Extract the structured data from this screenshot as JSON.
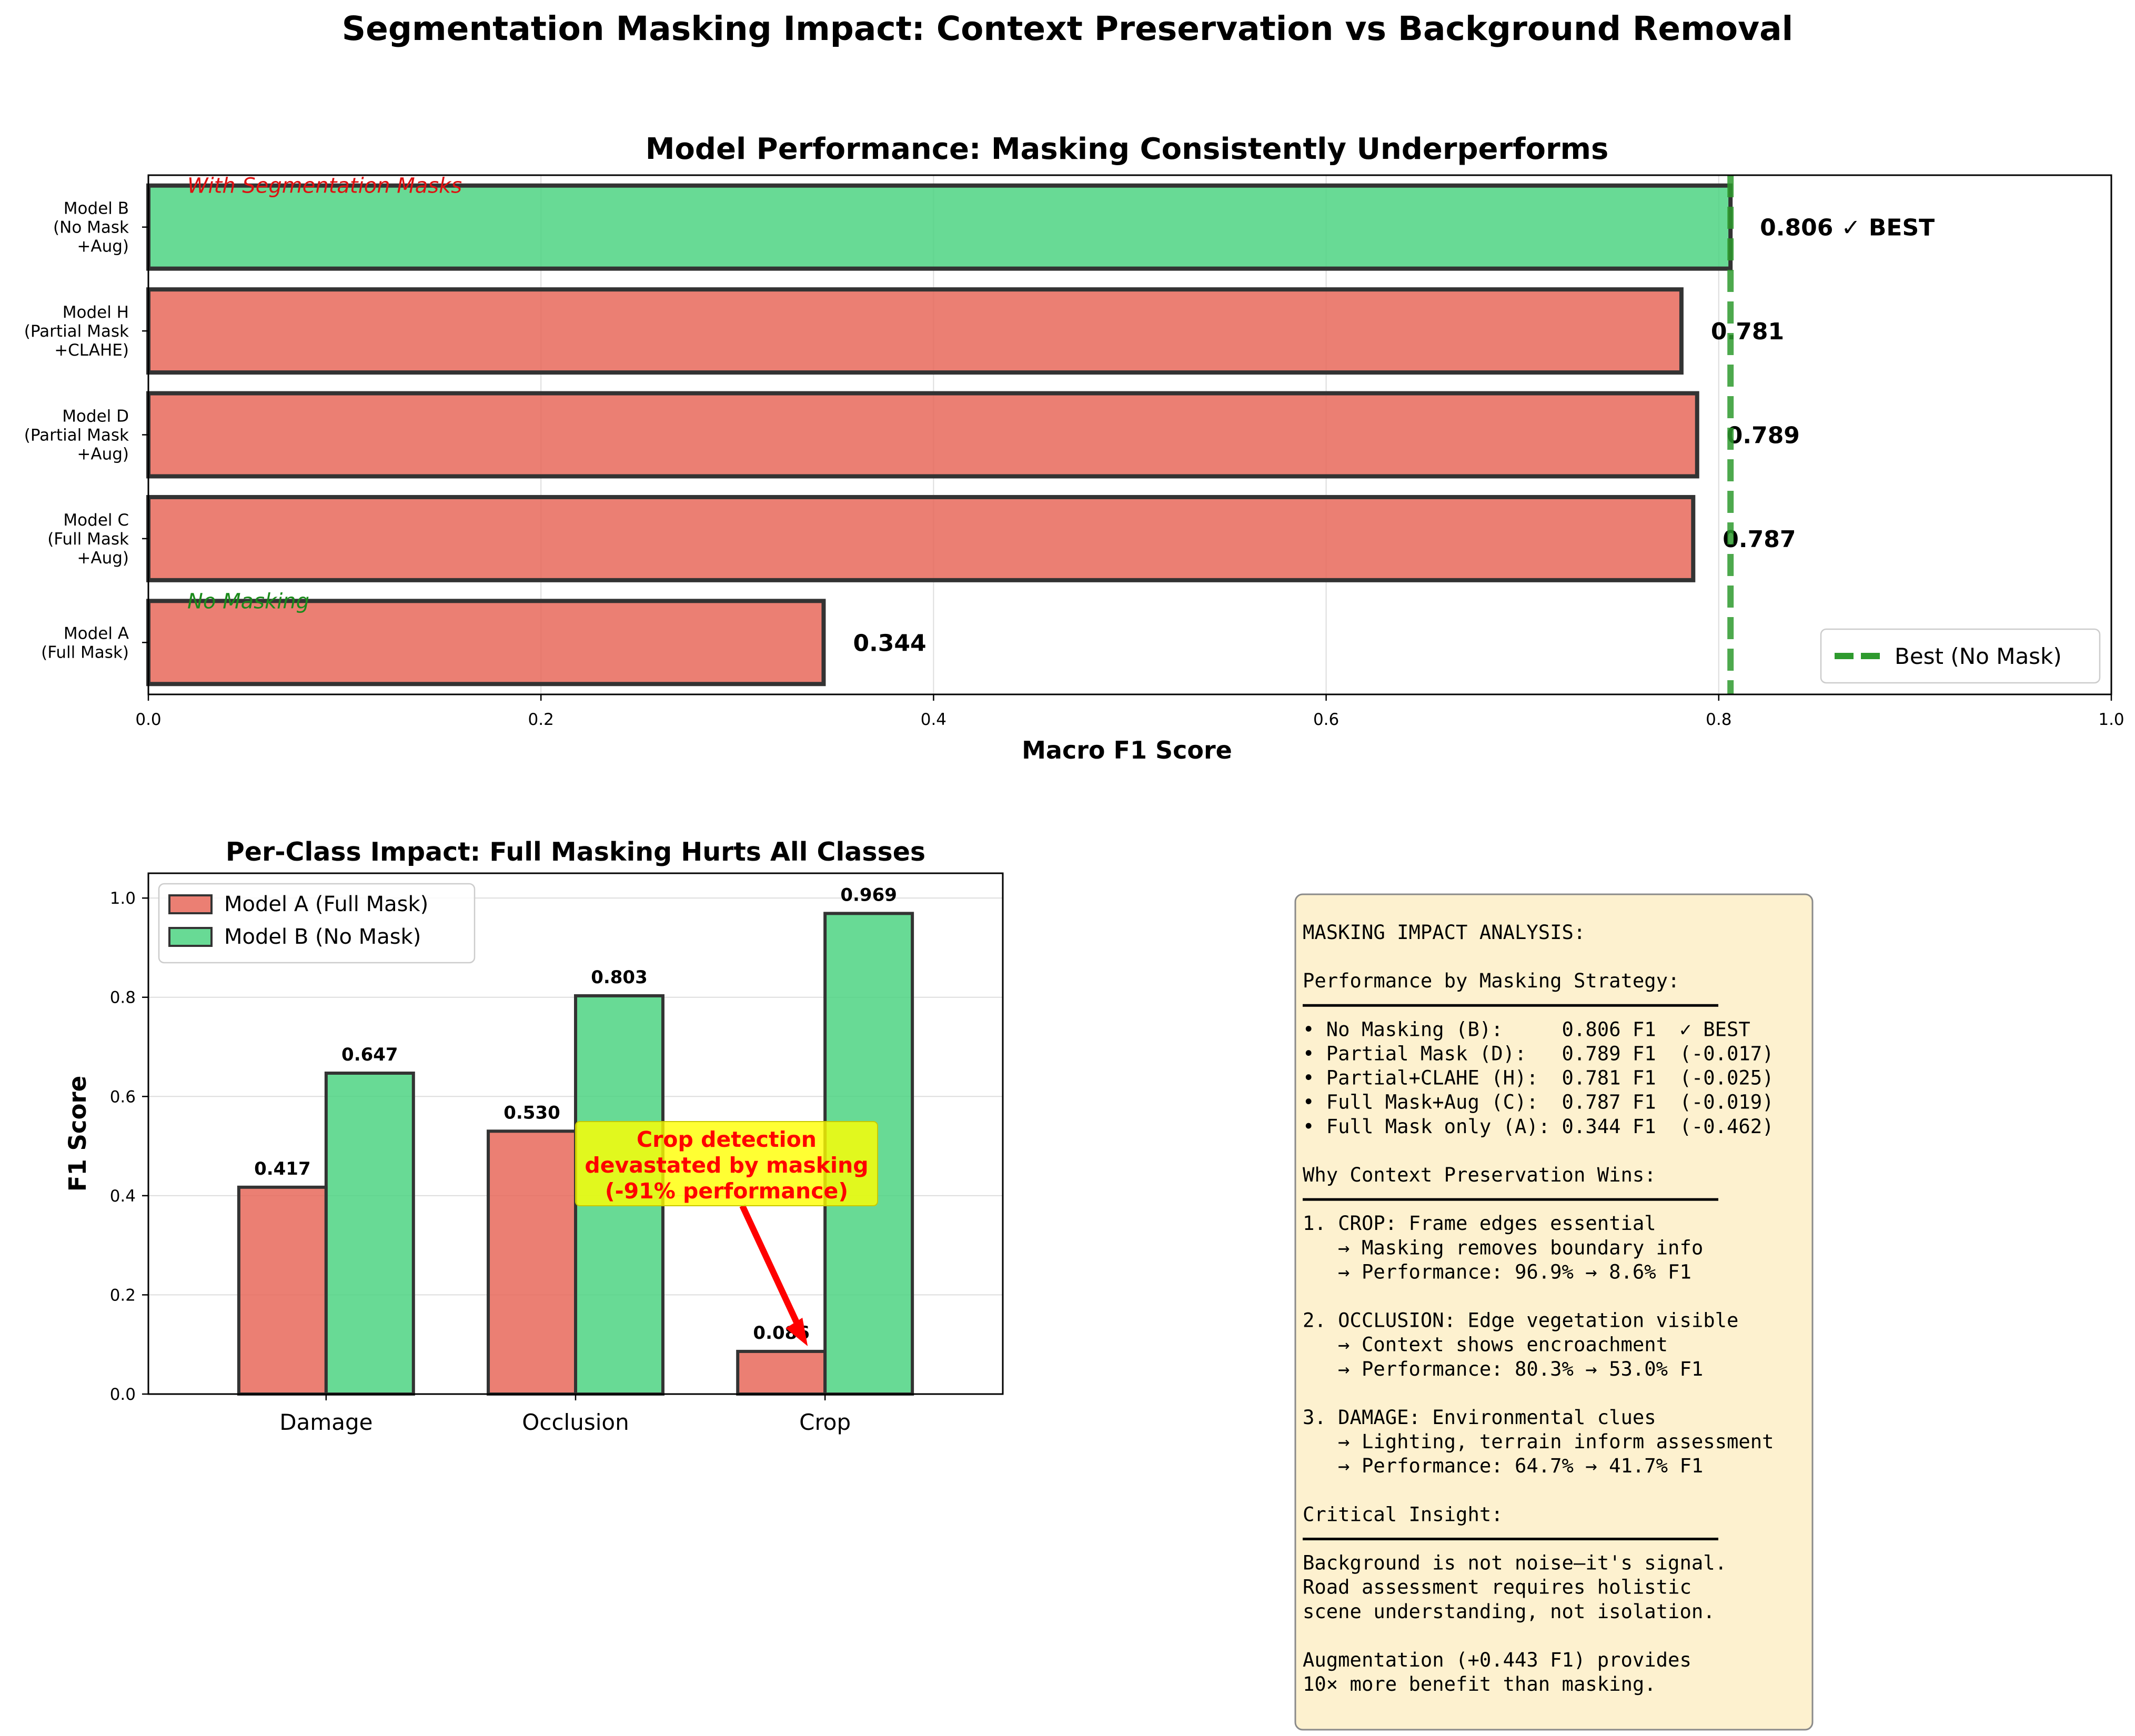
{
  "suptitle": "Segmentation Masking Impact: Context Preservation vs Background Removal",
  "colors": {
    "mask": "#e8685a",
    "nomask": "#4ed382",
    "best_line": "#2e9a2e",
    "annotation_text": "#ff0000",
    "annotation_box": "#ffff00",
    "textbox_bg": "#fdf1cf",
    "with_mask_label": "#dd1111",
    "no_mask_label": "#1a8a1a"
  },
  "chart_data": [
    {
      "type": "bar",
      "orientation": "horizontal",
      "title": "Model Performance: Masking Consistently Underperforms",
      "xlabel": "Macro F1 Score",
      "xlim": [
        0,
        1.0
      ],
      "xticks": [
        "0.0",
        "0.2",
        "0.4",
        "0.6",
        "0.8",
        "1.0"
      ],
      "grid": true,
      "categories": [
        "Model A\n(Full Mask)",
        "Model C\n(Full Mask\n+Aug)",
        "Model D\n(Partial Mask\n+Aug)",
        "Model H\n(Partial Mask\n+CLAHE)",
        "Model B\n(No Mask\n+Aug)"
      ],
      "values": [
        0.344,
        0.787,
        0.789,
        0.781,
        0.806
      ],
      "bar_colors": [
        "mask",
        "mask",
        "mask",
        "mask",
        "nomask"
      ],
      "value_labels": [
        "0.344",
        "0.787",
        "0.789",
        "0.781",
        "0.806 ✓ BEST"
      ],
      "reference_line": {
        "x": 0.806,
        "label": "Best (No Mask)",
        "style": "dashed"
      },
      "legend": {
        "position": "lower-right",
        "entries": [
          "Best (No Mask)"
        ]
      },
      "group_labels": [
        {
          "text": "With Segmentation Masks",
          "near_category": "Model B"
        },
        {
          "text": "No Masking",
          "near_category": "Model A"
        }
      ]
    },
    {
      "type": "bar",
      "title": "Per-Class Impact: Full Masking Hurts All Classes",
      "ylabel": "F1 Score",
      "ylim": [
        0,
        1.05
      ],
      "yticks": [
        "0.0",
        "0.2",
        "0.4",
        "0.6",
        "0.8",
        "1.0"
      ],
      "grid": true,
      "categories": [
        "Damage",
        "Occlusion",
        "Crop"
      ],
      "series": [
        {
          "name": "Model A (Full Mask)",
          "values": [
            0.417,
            0.53,
            0.086
          ],
          "labels": [
            "0.417",
            "0.530",
            "0.086"
          ],
          "color": "mask"
        },
        {
          "name": "Model B (No Mask)",
          "values": [
            0.647,
            0.803,
            0.969
          ],
          "labels": [
            "0.647",
            "0.803",
            "0.969"
          ],
          "color": "nomask"
        }
      ],
      "legend": {
        "position": "top-left"
      },
      "annotation": {
        "lines": [
          "Crop detection",
          "devastated by masking",
          "(-91% performance)"
        ],
        "points_to": {
          "category": "Crop",
          "value": 0.086
        }
      }
    }
  ],
  "textbox": {
    "lines": [
      "MASKING IMPACT ANALYSIS:",
      "",
      "Performance by Masking Strategy:",
      "━━━━━━━━━━━━━━━━━━━━━━━━━━━━━━━━━━",
      "• No Masking (B):     0.806 F1  ✓ BEST",
      "• Partial Mask (D):   0.789 F1  (-0.017)",
      "• Partial+CLAHE (H):  0.781 F1  (-0.025)",
      "• Full Mask+Aug (C):  0.787 F1  (-0.019)",
      "• Full Mask only (A): 0.344 F1  (-0.462)",
      "",
      "Why Context Preservation Wins:",
      "━━━━━━━━━━━━━━━━━━━━━━━━━━━━━━━━━━",
      "1. CROP: Frame edges essential",
      "   → Masking removes boundary info",
      "   → Performance: 96.9% → 8.6% F1",
      "",
      "2. OCCLUSION: Edge vegetation visible",
      "   → Context shows encroachment",
      "   → Performance: 80.3% → 53.0% F1",
      "",
      "3. DAMAGE: Environmental clues",
      "   → Lighting, terrain inform assessment",
      "   → Performance: 64.7% → 41.7% F1",
      "",
      "Critical Insight:",
      "━━━━━━━━━━━━━━━━━━━━━━━━━━━━━━━━━━",
      "Background is not noise—it's signal.",
      "Road assessment requires holistic",
      "scene understanding, not isolation.",
      "",
      "Augmentation (+0.443 F1) provides",
      "10× more benefit than masking."
    ]
  }
}
